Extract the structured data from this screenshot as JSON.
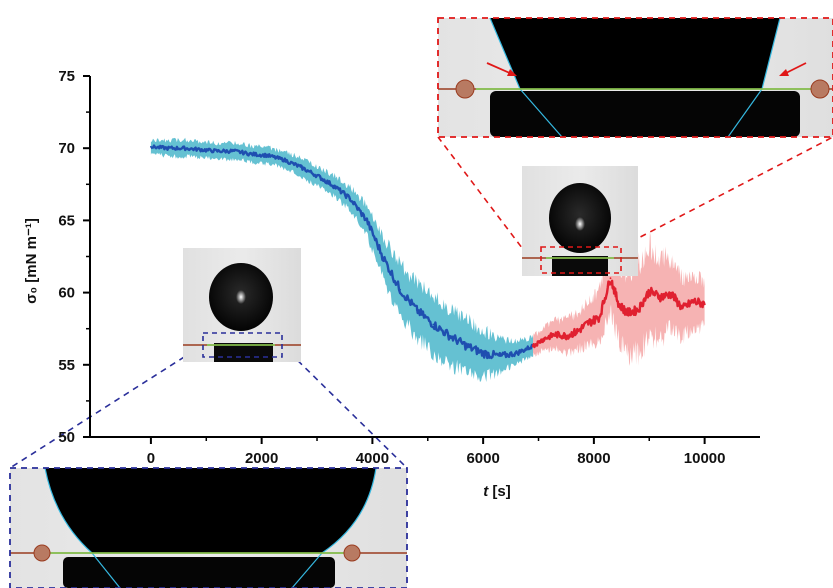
{
  "chart_data": {
    "type": "line",
    "xlabel": "t [s]",
    "ylabel": "σ₀ [mN m⁻¹]",
    "xlim": [
      -1100,
      11000
    ],
    "ylim": [
      50,
      75
    ],
    "x_ticks": [
      "0",
      "2000",
      "4000",
      "6000",
      "8000",
      "10000"
    ],
    "x_tick_values": [
      0,
      2000,
      4000,
      6000,
      8000,
      10000
    ],
    "y_ticks": [
      "50",
      "55",
      "60",
      "65",
      "70",
      "75"
    ],
    "y_tick_values": [
      50,
      55,
      60,
      65,
      70,
      75
    ],
    "series": [
      {
        "color": "#1f4fb0",
        "band_color": "#3fb2c7",
        "points": [
          [
            0,
            70.1
          ],
          [
            300,
            70.0
          ],
          [
            600,
            70.0
          ],
          [
            900,
            69.9
          ],
          [
            1200,
            69.8
          ],
          [
            1500,
            69.8
          ],
          [
            1800,
            69.6
          ],
          [
            2100,
            69.5
          ],
          [
            2400,
            69.2
          ],
          [
            2700,
            68.7
          ],
          [
            3000,
            68.1
          ],
          [
            3300,
            67.4
          ],
          [
            3600,
            66.5
          ],
          [
            3900,
            65.0
          ],
          [
            4200,
            62.4
          ],
          [
            4500,
            60.2
          ],
          [
            4800,
            58.8
          ],
          [
            5100,
            57.8
          ],
          [
            5400,
            57.0
          ],
          [
            5700,
            56.3
          ],
          [
            6000,
            55.8
          ],
          [
            6300,
            55.6
          ],
          [
            6600,
            55.8
          ],
          [
            6900,
            56.3
          ]
        ],
        "band": [
          0.6,
          0.7,
          0.7,
          0.7,
          0.7,
          0.7,
          0.7,
          0.7,
          0.7,
          0.8,
          0.8,
          0.9,
          1.0,
          1.3,
          1.8,
          2.2,
          2.4,
          2.4,
          2.4,
          2.3,
          2.0,
          1.4,
          1.0,
          0.8
        ]
      },
      {
        "color": "#e02030",
        "band_color": "#f4a0a0",
        "points": [
          [
            6900,
            56.3
          ],
          [
            7100,
            56.8
          ],
          [
            7300,
            57.1
          ],
          [
            7500,
            57.0
          ],
          [
            7700,
            57.3
          ],
          [
            7900,
            57.9
          ],
          [
            8100,
            58.3
          ],
          [
            8300,
            61.0
          ],
          [
            8450,
            59.2
          ],
          [
            8600,
            58.6
          ],
          [
            8800,
            58.8
          ],
          [
            9000,
            60.1
          ],
          [
            9200,
            59.7
          ],
          [
            9400,
            59.9
          ],
          [
            9600,
            58.9
          ],
          [
            9800,
            59.4
          ],
          [
            10000,
            59.2
          ]
        ],
        "band": [
          0.8,
          1.0,
          1.2,
          1.4,
          1.6,
          1.8,
          2.2,
          2.8,
          3.2,
          3.6,
          3.8,
          4.0,
          3.5,
          3.0,
          2.5,
          2.2,
          2.0
        ]
      }
    ]
  },
  "insets": [
    {
      "name": "pendant-drop-early"
    },
    {
      "name": "pendant-drop-late"
    },
    {
      "name": "contact-line-zoom-late"
    },
    {
      "name": "contact-line-zoom-early"
    }
  ]
}
